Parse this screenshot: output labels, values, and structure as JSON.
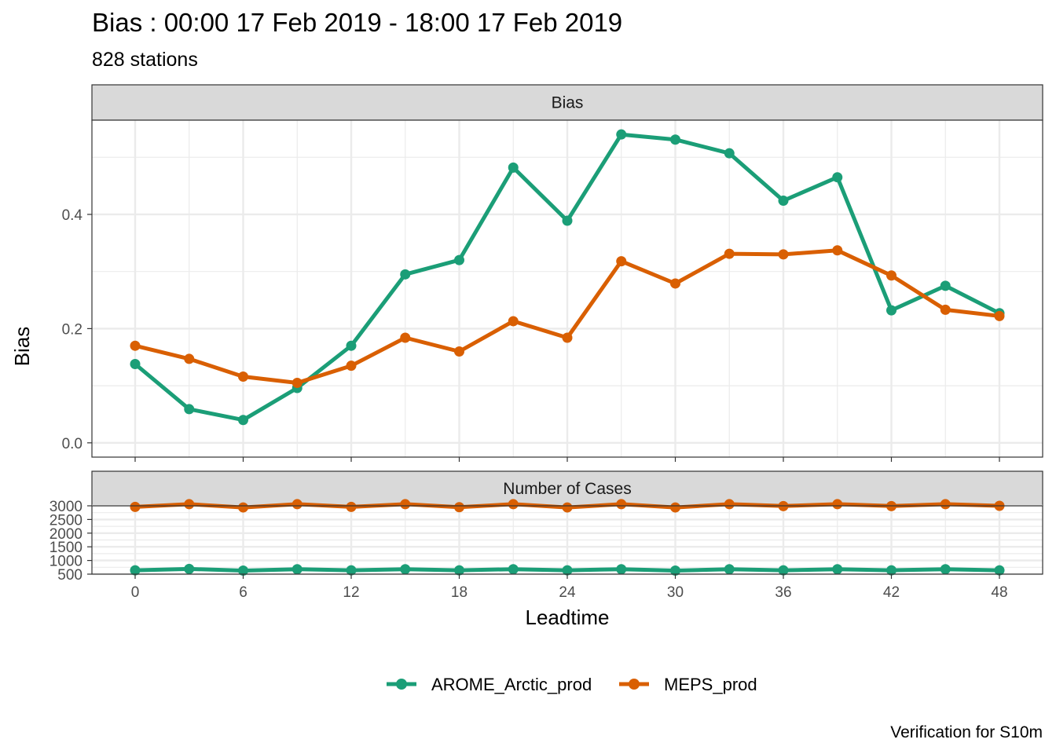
{
  "title": "Bias : 00:00 17 Feb 2019 - 18:00 17 Feb 2019",
  "subtitle": "828 stations",
  "caption": "Verification for S10m",
  "colors": {
    "arome": "#1b9e77",
    "meps": "#d95f02",
    "strip_bg": "#d9d9d9",
    "grid": "#ebebeb"
  },
  "chart_data": [
    {
      "type": "line",
      "panel_title": "Bias",
      "xlabel": "Leadtime",
      "ylabel": "Bias",
      "x": [
        0,
        3,
        6,
        9,
        12,
        15,
        18,
        21,
        24,
        27,
        30,
        33,
        36,
        39,
        42,
        45,
        48
      ],
      "xticks": [
        0,
        6,
        12,
        18,
        24,
        30,
        36,
        42,
        48
      ],
      "xlim": [
        -2.4,
        50.4
      ],
      "ylim": [
        -0.025,
        0.565
      ],
      "yticks": [
        0.0,
        0.2,
        0.4
      ],
      "ytick_labels": [
        "0.0",
        "0.2",
        "0.4"
      ],
      "grid": true,
      "series": [
        {
          "name": "AROME_Arctic_prod",
          "values": [
            0.138,
            0.059,
            0.04,
            0.096,
            0.17,
            0.295,
            0.32,
            0.482,
            0.389,
            0.54,
            0.531,
            0.507,
            0.424,
            0.465,
            0.232,
            0.275,
            0.227
          ]
        },
        {
          "name": "MEPS_prod",
          "values": [
            0.17,
            0.147,
            0.116,
            0.105,
            0.135,
            0.184,
            0.16,
            0.213,
            0.184,
            0.318,
            0.279,
            0.331,
            0.33,
            0.337,
            0.293,
            0.233,
            0.222
          ]
        }
      ]
    },
    {
      "type": "line",
      "panel_title": "Number of Cases",
      "xlabel": "Leadtime",
      "ylabel": "",
      "x": [
        0,
        3,
        6,
        9,
        12,
        15,
        18,
        21,
        24,
        27,
        30,
        33,
        36,
        39,
        42,
        45,
        48
      ],
      "xticks": [
        0,
        6,
        12,
        18,
        24,
        30,
        36,
        42,
        48
      ],
      "ylim": [
        500,
        3000
      ],
      "yticks": [
        500,
        1000,
        1500,
        2000,
        2500,
        3000
      ],
      "grid": true,
      "series": [
        {
          "name": "AROME_Arctic_prod",
          "values": [
            640,
            690,
            630,
            680,
            640,
            680,
            640,
            680,
            640,
            680,
            630,
            680,
            640,
            680,
            640,
            680,
            640
          ]
        },
        {
          "name": "MEPS_prod",
          "values": [
            2960,
            3060,
            2940,
            3060,
            2960,
            3060,
            2950,
            3060,
            2940,
            3060,
            2940,
            3060,
            2990,
            3060,
            2990,
            3060,
            3000
          ]
        }
      ]
    }
  ],
  "legend": {
    "position": "bottom",
    "items": [
      {
        "label": "AROME_Arctic_prod",
        "color": "#1b9e77"
      },
      {
        "label": "MEPS_prod",
        "color": "#d95f02"
      }
    ]
  }
}
